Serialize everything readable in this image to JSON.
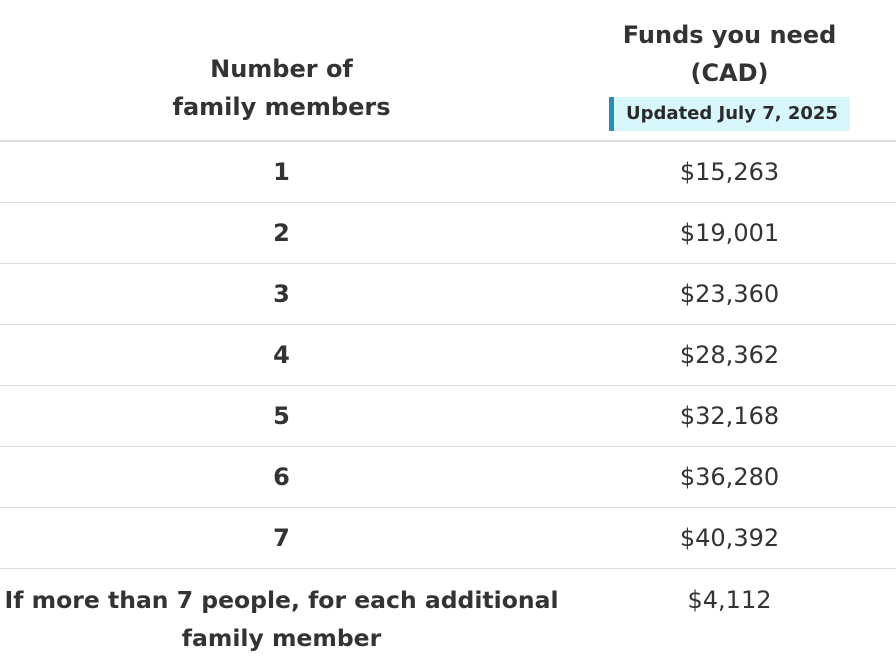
{
  "header": {
    "col1_line1": "Number of",
    "col1_line2": "family members",
    "col2_line1": "Funds you need",
    "col2_line2": "(CAD)",
    "updated_badge": "Updated July 7, 2025"
  },
  "rows": [
    {
      "members": "1",
      "funds": "$15,263"
    },
    {
      "members": "2",
      "funds": "$19,001"
    },
    {
      "members": "3",
      "funds": "$23,360"
    },
    {
      "members": "4",
      "funds": "$28,362"
    },
    {
      "members": "5",
      "funds": "$32,168"
    },
    {
      "members": "6",
      "funds": "$36,280"
    },
    {
      "members": "7",
      "funds": "$40,392"
    }
  ],
  "additional": {
    "label": "If more than 7 people, for each additional family member",
    "funds": "$4,112"
  },
  "colors": {
    "text": "#333333",
    "badge_bg": "#d8f7fc",
    "badge_border": "#2b8cb5",
    "divider": "#dcdcdc"
  }
}
